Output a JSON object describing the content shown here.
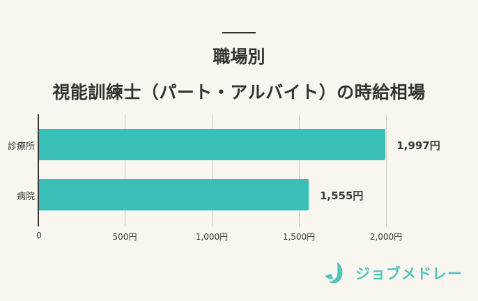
{
  "header": {
    "title_line1": "職場別",
    "title_line2": "視能訓練士（パート・アルバイト）の時給相場"
  },
  "chart_data": {
    "type": "bar",
    "orientation": "horizontal",
    "title": "職場別 視能訓練士（パート・アルバイト）の時給相場",
    "categories": [
      "診療所",
      "病院"
    ],
    "values": [
      1997,
      1555
    ],
    "value_labels": [
      "1,997円",
      "1,555円"
    ],
    "xlabel": "",
    "ylabel": "",
    "xlim": [
      0,
      2000
    ],
    "x_ticks": [
      "0",
      "500円",
      "1,000円",
      "1,500円",
      "2,000円"
    ],
    "grid": true,
    "bar_color": "#3abfb8"
  },
  "logo": {
    "text": "ジョブメドレー",
    "color": "#4fc3bc"
  }
}
